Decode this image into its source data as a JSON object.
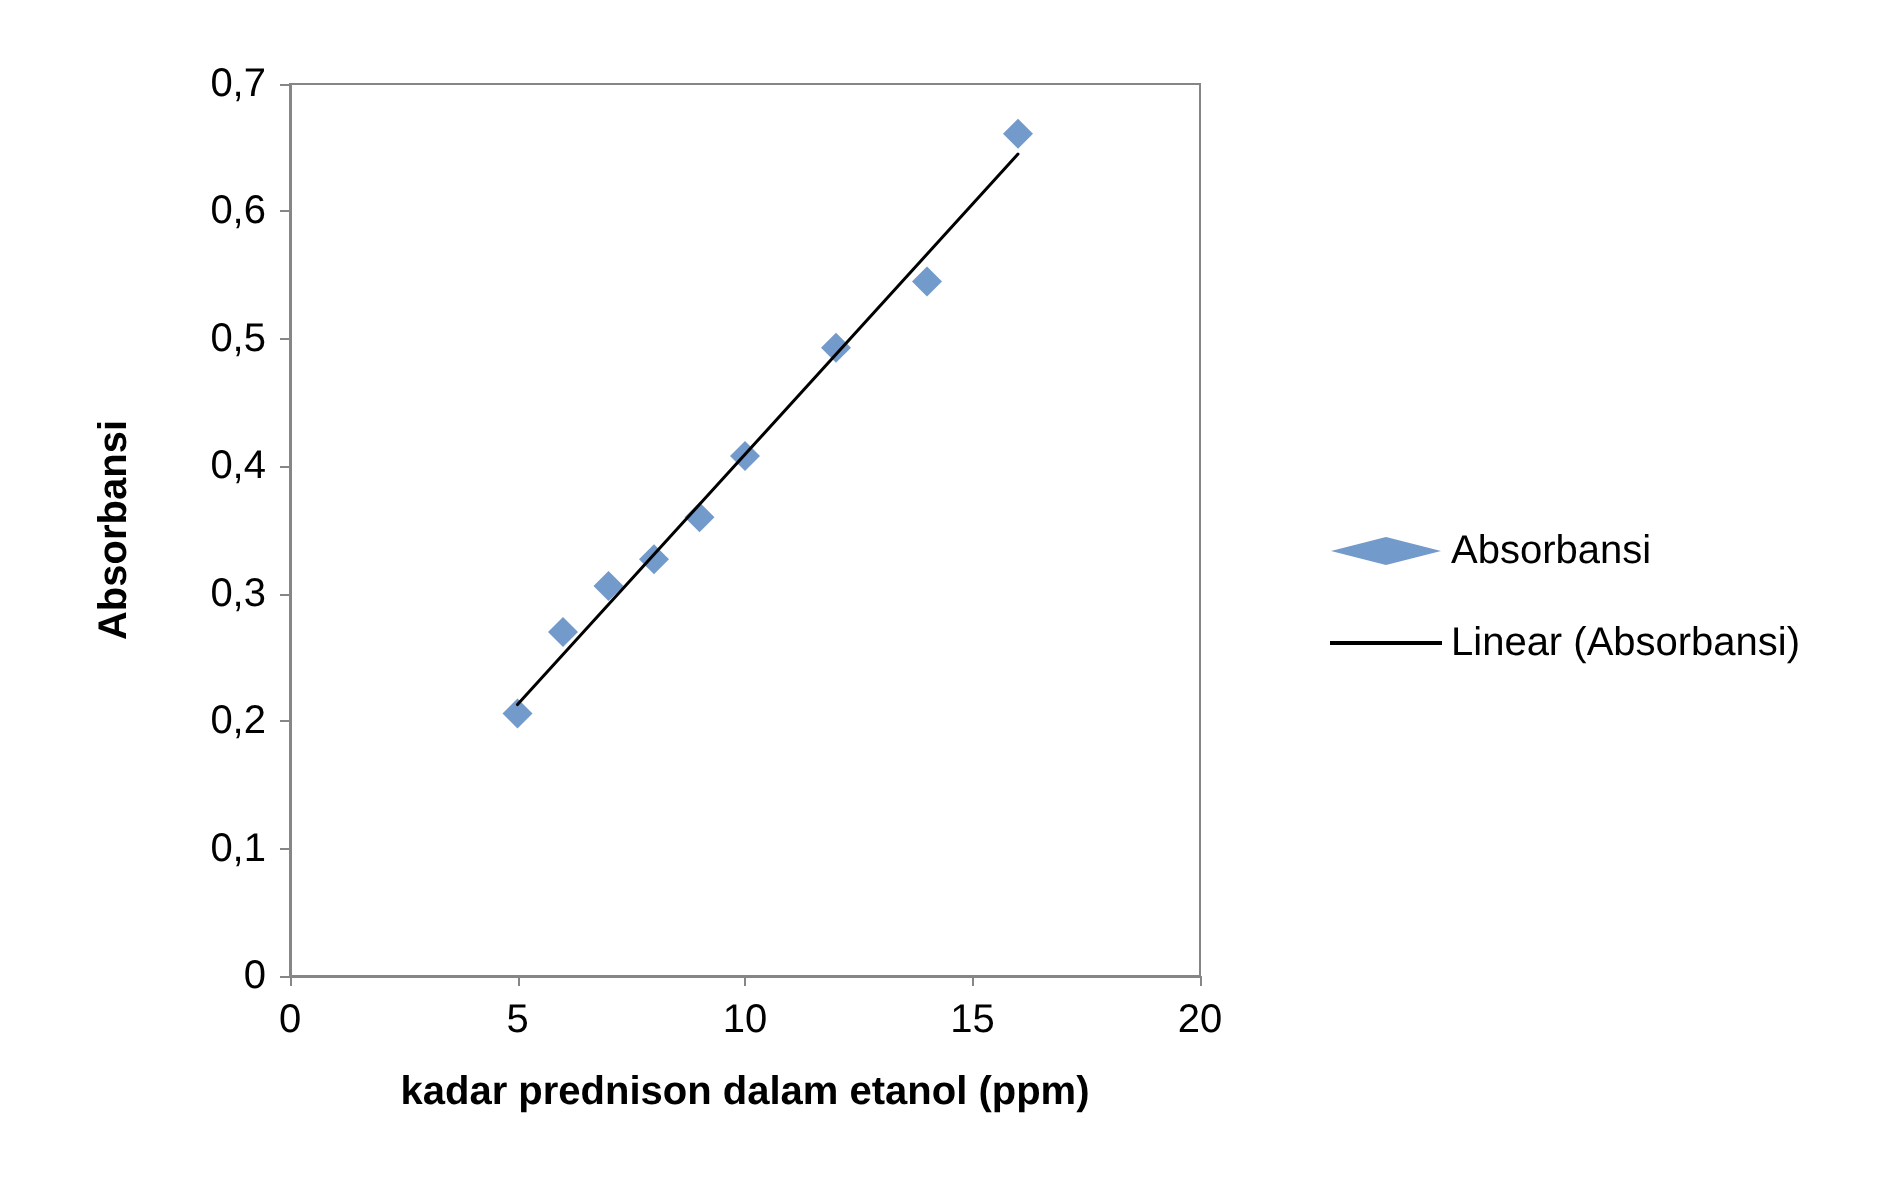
{
  "chart_data": {
    "type": "scatter",
    "xlabel": "kadar prednison dalam etanol (ppm)",
    "ylabel": "Absorbansi",
    "x": [
      5,
      6,
      7,
      8,
      9,
      10,
      12,
      14,
      16
    ],
    "series": [
      {
        "name": "Absorbansi",
        "color": "#4f81bd",
        "marker": "diamond",
        "values": [
          0.206,
          0.27,
          0.306,
          0.327,
          0.36,
          0.408,
          0.493,
          0.545,
          0.661
        ]
      },
      {
        "name": "Linear (Absorbansi)",
        "type": "line",
        "color": "#000000",
        "marker": "none",
        "line_style": "solid",
        "x": [
          5,
          16
        ],
        "values": [
          0.213,
          0.645
        ]
      }
    ],
    "xlim": [
      0,
      20
    ],
    "xticks": [
      0,
      5,
      10,
      15,
      20
    ],
    "ylim": [
      0,
      0.7
    ],
    "yticks": [
      {
        "value": 0,
        "label": "0"
      },
      {
        "value": 0.1,
        "label": "0,1"
      },
      {
        "value": 0.2,
        "label": "0,2"
      },
      {
        "value": 0.3,
        "label": "0,3"
      },
      {
        "value": 0.4,
        "label": "0,4"
      },
      {
        "value": 0.5,
        "label": "0,5"
      },
      {
        "value": 0.6,
        "label": "0,6"
      },
      {
        "value": 0.7,
        "label": "0,7"
      }
    ],
    "grid": false,
    "legend": "right"
  }
}
